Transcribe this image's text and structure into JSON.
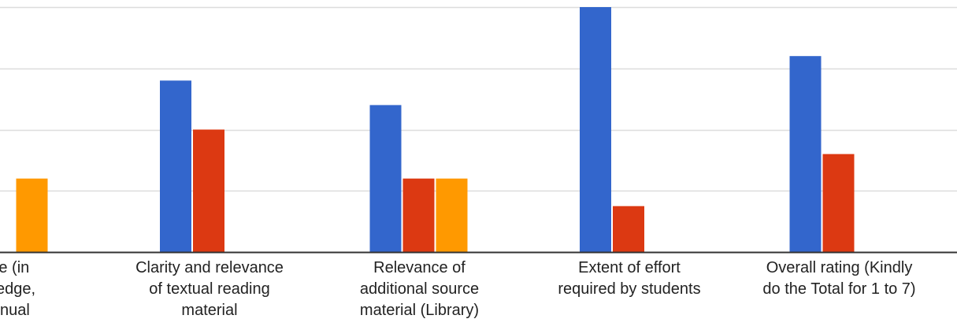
{
  "colors": {
    "series_1": "#3366CC",
    "series_2": "#DC3912",
    "series_3": "#FF9900",
    "gridline": "#DDDDDD",
    "baseline": "#333333"
  },
  "chart_data": {
    "type": "bar",
    "title": "",
    "xlabel": "",
    "ylabel": "",
    "grid": true,
    "ylim": [
      0,
      8
    ],
    "categories": [
      [
        "value (in",
        "nowledge,",
        ", manual"
      ],
      [
        "Clarity and relevance",
        "of textual reading",
        "material"
      ],
      [
        "Relevance of",
        "additional source",
        "material (Library)"
      ],
      [
        "Extent of effort",
        "required by students"
      ],
      [
        "Overall rating (Kindly",
        "do the Total for 1 to 7)"
      ]
    ],
    "series": [
      {
        "values": [
          0,
          5.6,
          4.8,
          8.0,
          6.4
        ]
      },
      {
        "values": [
          0,
          4.0,
          2.4,
          1.5,
          3.2
        ]
      },
      {
        "values": [
          2.4,
          0,
          2.4,
          0,
          0
        ]
      }
    ]
  }
}
